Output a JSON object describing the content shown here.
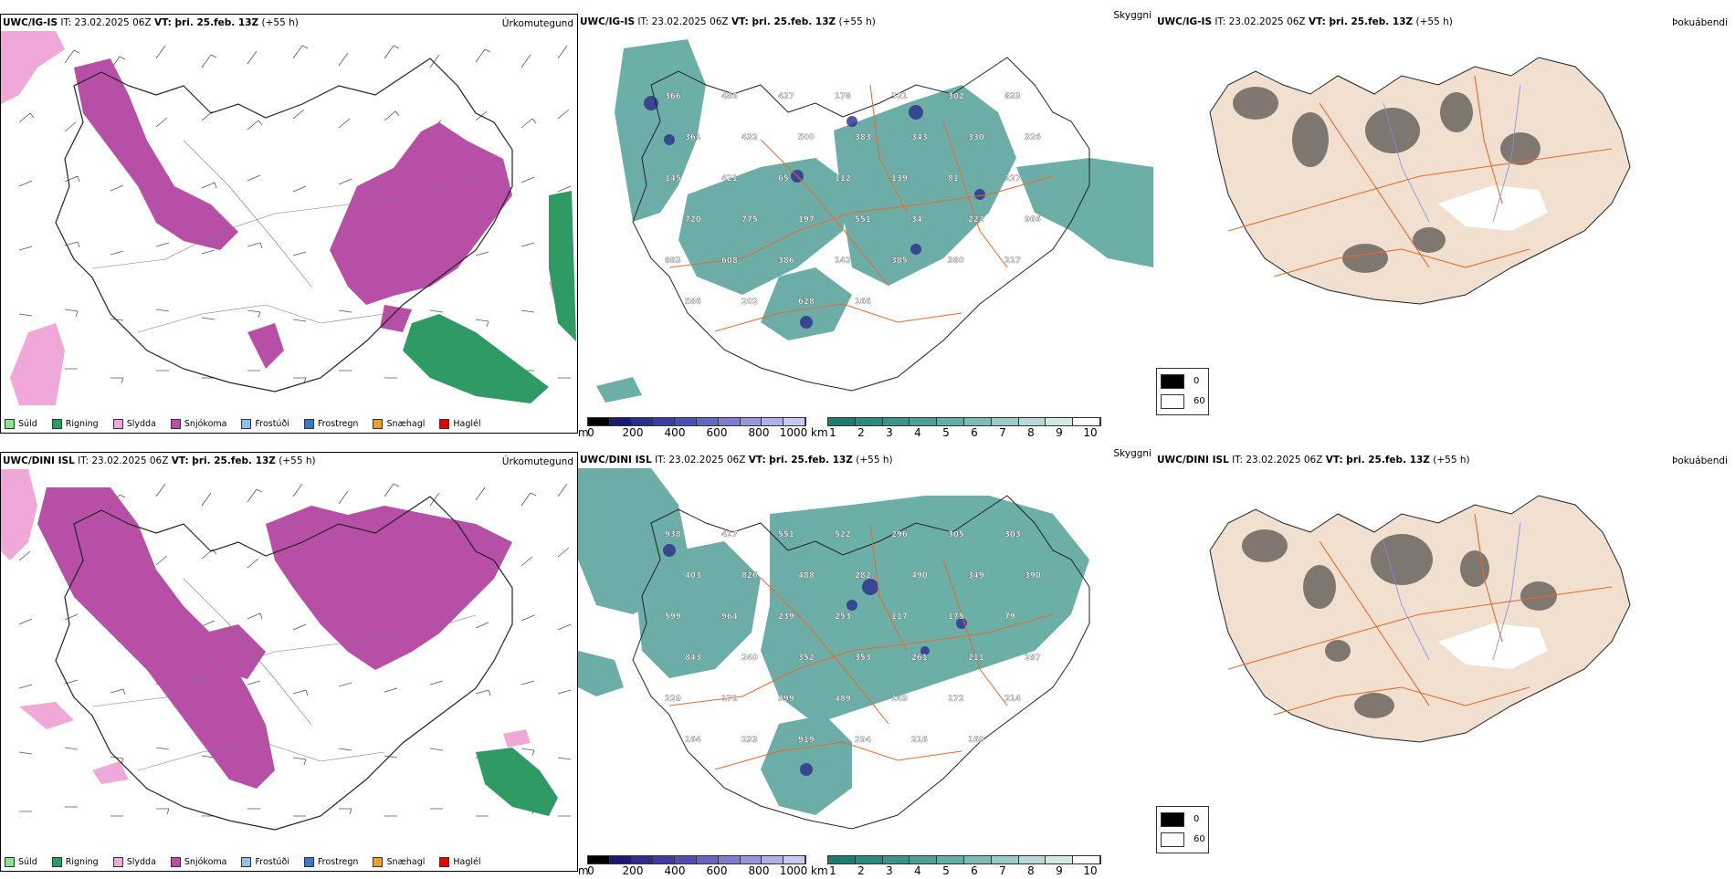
{
  "colors": {
    "precip_snow": "#b84fa6",
    "precip_rain": "#2f9a63",
    "precip_sleet": "#f0a8d8",
    "precip_drizzle": "#8fe08f",
    "frost_drizzle": "#8cc0ee",
    "frost_rain": "#3a78c2",
    "snow_hail": "#f0a020",
    "hail": "#e00000",
    "cloud_teal": "#3b948a",
    "ceiling_blue": "#2a2e8c",
    "road": "#e8692a",
    "land_cloudfree": "#f1e0cf"
  },
  "rows": [
    {
      "model": "UWC/IG-IS",
      "it_label": "IT:",
      "it_value": "23.02.2025 06Z",
      "vt_label": "VT: þri. 25.feb. 13Z",
      "lead": "(+55 h)",
      "ceiling_labels": [
        "366",
        "486",
        "427",
        "178",
        "321",
        "302",
        "833",
        "361",
        "432",
        "500",
        "383",
        "343",
        "330",
        "326",
        "145",
        "421",
        "65",
        "112",
        "139",
        "81",
        "227",
        "720",
        "775",
        "197",
        "551",
        "34",
        "222",
        "966",
        "883",
        "608",
        "386",
        "142",
        "385",
        "380",
        "217",
        "586",
        "202",
        "628",
        "166"
      ]
    },
    {
      "model": "UWC/DINI ISL",
      "it_label": "IT:",
      "it_value": "23.02.2025 06Z",
      "vt_label": "VT: þri. 25.feb. 13Z",
      "lead": "(+55 h)",
      "ceiling_labels": [
        "938",
        "417",
        "551",
        "522",
        "296",
        "305",
        "303",
        "403",
        "826",
        "488",
        "282",
        "490",
        "349",
        "390",
        "599",
        "964",
        "239",
        "253",
        "117",
        "175",
        "79",
        "843",
        "240",
        "352",
        "353",
        "261",
        "211",
        "287",
        "229",
        "171",
        "399",
        "489",
        "149",
        "172",
        "214",
        "164",
        "233",
        "919",
        "294",
        "216",
        "160"
      ]
    }
  ],
  "panel_titles": {
    "precip": "Úrkomutegund",
    "visibility": "Skyggni",
    "fog": "Þokuábendi"
  },
  "precip_legend": [
    {
      "label": "Súld",
      "color": "#8fe08f"
    },
    {
      "label": "Rigning",
      "color": "#2f9a63"
    },
    {
      "label": "Slydda",
      "color": "#f0a8d8"
    },
    {
      "label": "Snjókoma",
      "color": "#b84fa6"
    },
    {
      "label": "Frostúði",
      "color": "#8cc0ee"
    },
    {
      "label": "Frostregn",
      "color": "#3a78c2"
    },
    {
      "label": "Snæhagl",
      "color": "#f0a020"
    },
    {
      "label": "Haglél",
      "color": "#e00000"
    }
  ],
  "ceiling_scale": {
    "unit": "m",
    "ticks": [
      "0",
      "200",
      "400",
      "600",
      "800",
      "1000"
    ]
  },
  "visibility_scale": {
    "unit": "km",
    "ticks": [
      "1",
      "2",
      "3",
      "4",
      "5",
      "6",
      "7",
      "8",
      "9",
      "10"
    ]
  },
  "cloud_legend": {
    "black": "0",
    "white": "60"
  }
}
